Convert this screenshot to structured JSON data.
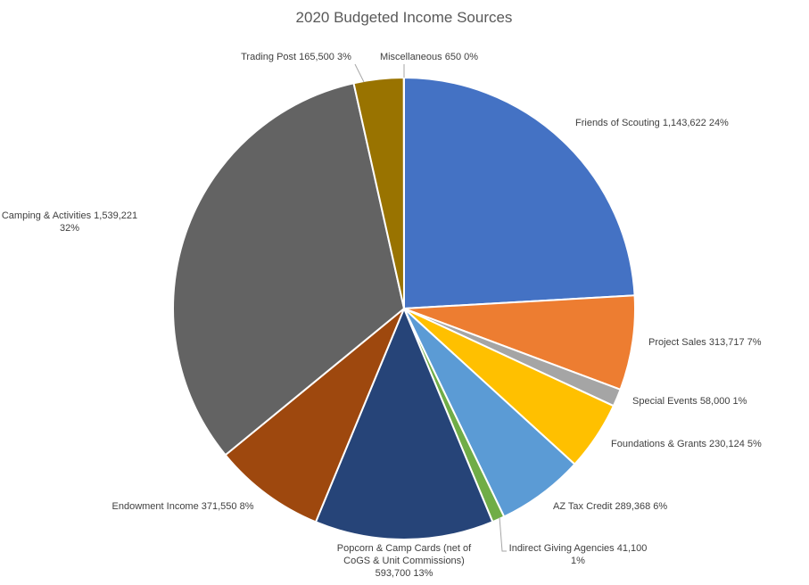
{
  "chart_data": {
    "type": "pie",
    "title": "2020 Budgeted Income Sources",
    "slices": [
      {
        "label": "Friends of Scouting",
        "value": 1143622,
        "value_text": "1,143,622",
        "pct_text": "24%",
        "color": "#4472C4"
      },
      {
        "label": "Project Sales",
        "value": 313717,
        "value_text": "313,717",
        "pct_text": "7%",
        "color": "#ED7D31"
      },
      {
        "label": "Special Events",
        "value": 58000,
        "value_text": "58,000",
        "pct_text": "1%",
        "color": "#A5A5A5"
      },
      {
        "label": "Foundations & Grants",
        "value": 230124,
        "value_text": "230,124",
        "pct_text": "5%",
        "color": "#FFC000"
      },
      {
        "label": "AZ Tax Credit",
        "value": 289368,
        "value_text": "289,368",
        "pct_text": "6%",
        "color": "#5B9BD5"
      },
      {
        "label": "Indirect Giving Agencies",
        "value": 41100,
        "value_text": "41,100",
        "pct_text": "1%",
        "color": "#70AD47"
      },
      {
        "label": "Popcorn & Camp Cards (net of CoGS & Unit Commissions)",
        "value": 593700,
        "value_text": "593,700",
        "pct_text": "13%",
        "color": "#264478"
      },
      {
        "label": "Endowment Income",
        "value": 371550,
        "value_text": "371,550",
        "pct_text": "8%",
        "color": "#9E480E"
      },
      {
        "label": "Camping & Activities",
        "value": 1539221,
        "value_text": "1,539,221",
        "pct_text": "32%",
        "color": "#636363"
      },
      {
        "label": "Trading Post",
        "value": 165500,
        "value_text": "165,500",
        "pct_text": "3%",
        "color": "#997300"
      },
      {
        "label": "Miscellaneous",
        "value": 650,
        "value_text": "650",
        "pct_text": "0%",
        "color": "#264478"
      }
    ],
    "legend": "none",
    "data_labels": "outside"
  }
}
